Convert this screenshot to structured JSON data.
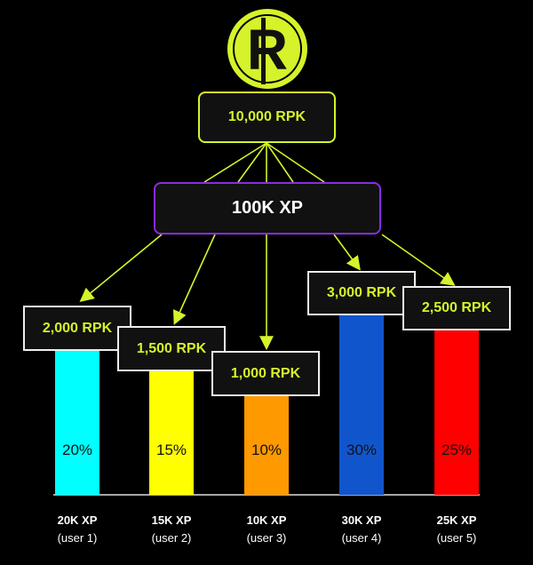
{
  "coin": {
    "symbol": "R",
    "color": "#d6f22a"
  },
  "pool": {
    "label": "10,000 RPK"
  },
  "total": {
    "label": "100K XP",
    "border_color": "#8b2be2"
  },
  "users": [
    {
      "xp": "20K XP",
      "name": "(user 1)",
      "reward": "2,000 RPK",
      "share": "20%",
      "color": "#00ffff"
    },
    {
      "xp": "15K XP",
      "name": "(user 2)",
      "reward": "1,500 RPK",
      "share": "15%",
      "color": "#ffff00"
    },
    {
      "xp": "10K XP",
      "name": "(user 3)",
      "reward": "1,000 RPK",
      "share": "10%",
      "color": "#ff9900"
    },
    {
      "xp": "30K XP",
      "name": "(user 4)",
      "reward": "3,000 RPK",
      "share": "30%",
      "color": "#1155cc"
    },
    {
      "xp": "25K XP",
      "name": "(user 5)",
      "reward": "2,500 RPK",
      "share": "25%",
      "color": "#ff0000"
    }
  ]
}
